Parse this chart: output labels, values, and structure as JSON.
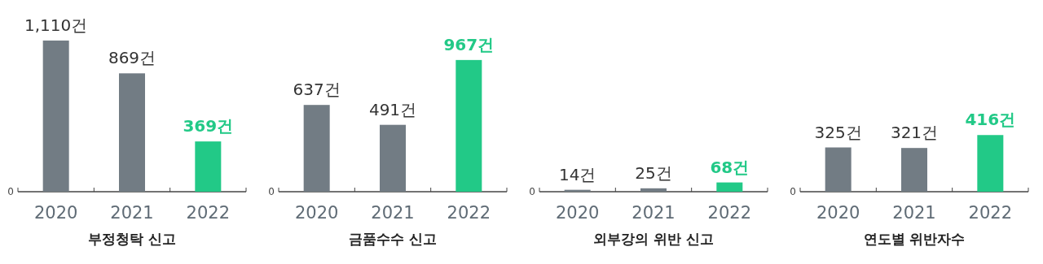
{
  "chart_data": [
    {
      "type": "bar",
      "xlabel": "부정청탁 신고",
      "categories": [
        "2020",
        "2021",
        "2022"
      ],
      "values": [
        1110,
        869,
        369
      ],
      "colors": [
        "#727c84",
        "#727c84",
        "#22c987"
      ],
      "value_labels": [
        "1,110건",
        "869건",
        "369건"
      ],
      "annotations": [
        "0"
      ]
    },
    {
      "type": "bar",
      "xlabel": "금품수수 신고",
      "categories": [
        "2020",
        "2021",
        "2022"
      ],
      "values": [
        637,
        491,
        967
      ],
      "colors": [
        "#727c84",
        "#727c84",
        "#22c987"
      ],
      "value_labels": [
        "637건",
        "491건",
        "967건"
      ],
      "annotations": [
        "0"
      ]
    },
    {
      "type": "bar",
      "xlabel": "외부강의 위반 신고",
      "categories": [
        "2020",
        "2021",
        "2022"
      ],
      "values": [
        14,
        25,
        68
      ],
      "colors": [
        "#727c84",
        "#727c84",
        "#22c987"
      ],
      "value_labels": [
        "14건",
        "25건",
        "68건"
      ],
      "annotations": [
        "0"
      ]
    },
    {
      "type": "bar",
      "xlabel": "연도별 위반자수",
      "categories": [
        "2020",
        "2021",
        "2022"
      ],
      "values": [
        325,
        321,
        416
      ],
      "colors": [
        "#727c84",
        "#727c84",
        "#22c987"
      ],
      "value_labels": [
        "325건",
        "321건",
        "416건"
      ],
      "annotations": [
        "0"
      ]
    }
  ]
}
